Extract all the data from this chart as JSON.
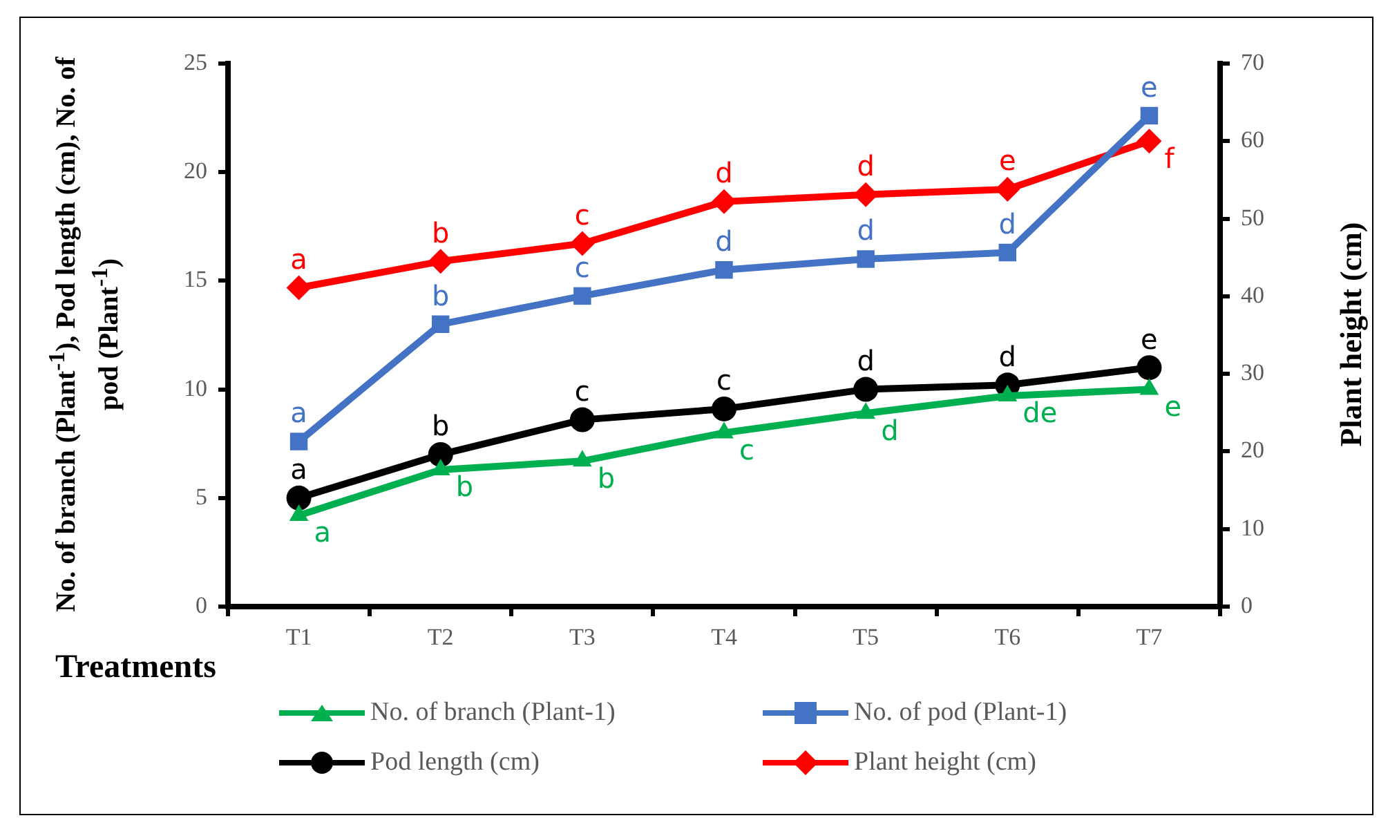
{
  "chart_data": {
    "type": "line",
    "xlabel": "Treatments",
    "ylabel": "No. of branch (Plant$^{-1}$), Pod length (cm),  No. of pod (Plant$^{-1}$)",
    "y2label": "Plant height (cm)",
    "categories": [
      "T1",
      "T2",
      "T3",
      "T4",
      "T5",
      "T6",
      "T7"
    ],
    "ylim": [
      0,
      25
    ],
    "yticks": [
      0,
      5,
      10,
      15,
      20,
      25
    ],
    "y2lim": [
      0,
      70
    ],
    "y2ticks": [
      0,
      10,
      20,
      30,
      40,
      50,
      60,
      70
    ],
    "legend": "bottom",
    "line_style": "solid",
    "series": [
      {
        "name": "No. of branch (Plant-1)",
        "color": "#00b050",
        "marker": "triangle",
        "values": [
          4.2,
          6.3,
          6.7,
          8.0,
          8.9,
          9.7,
          10.0
        ],
        "value_labels": [
          "a",
          "b",
          "b",
          "c",
          "d",
          "de",
          "e"
        ]
      },
      {
        "name": "No. of pod (Plant-1)",
        "color": "#4472c4",
        "marker": "square",
        "values": [
          7.6,
          13.0,
          14.3,
          15.5,
          16.0,
          16.3,
          22.6
        ],
        "value_labels": [
          "a",
          "b",
          "c",
          "d",
          "d",
          "d",
          "e"
        ]
      },
      {
        "name": "Pod length (cm)",
        "color": "#000000",
        "marker": "circle",
        "values": [
          5.0,
          7.0,
          8.6,
          9.1,
          10.0,
          10.2,
          11.0
        ],
        "value_labels": [
          "a",
          "b",
          "c",
          "c",
          "d",
          "d",
          "e"
        ]
      },
      {
        "name": "Plant height (cm)",
        "color": "#ff0000",
        "marker": "diamond",
        "axis": "y2",
        "values": [
          41.1,
          44.5,
          46.8,
          52.2,
          53.1,
          53.8,
          60.0
        ],
        "value_labels": [
          "a",
          "b",
          "c",
          "d",
          "d",
          "e",
          "f"
        ]
      }
    ]
  }
}
